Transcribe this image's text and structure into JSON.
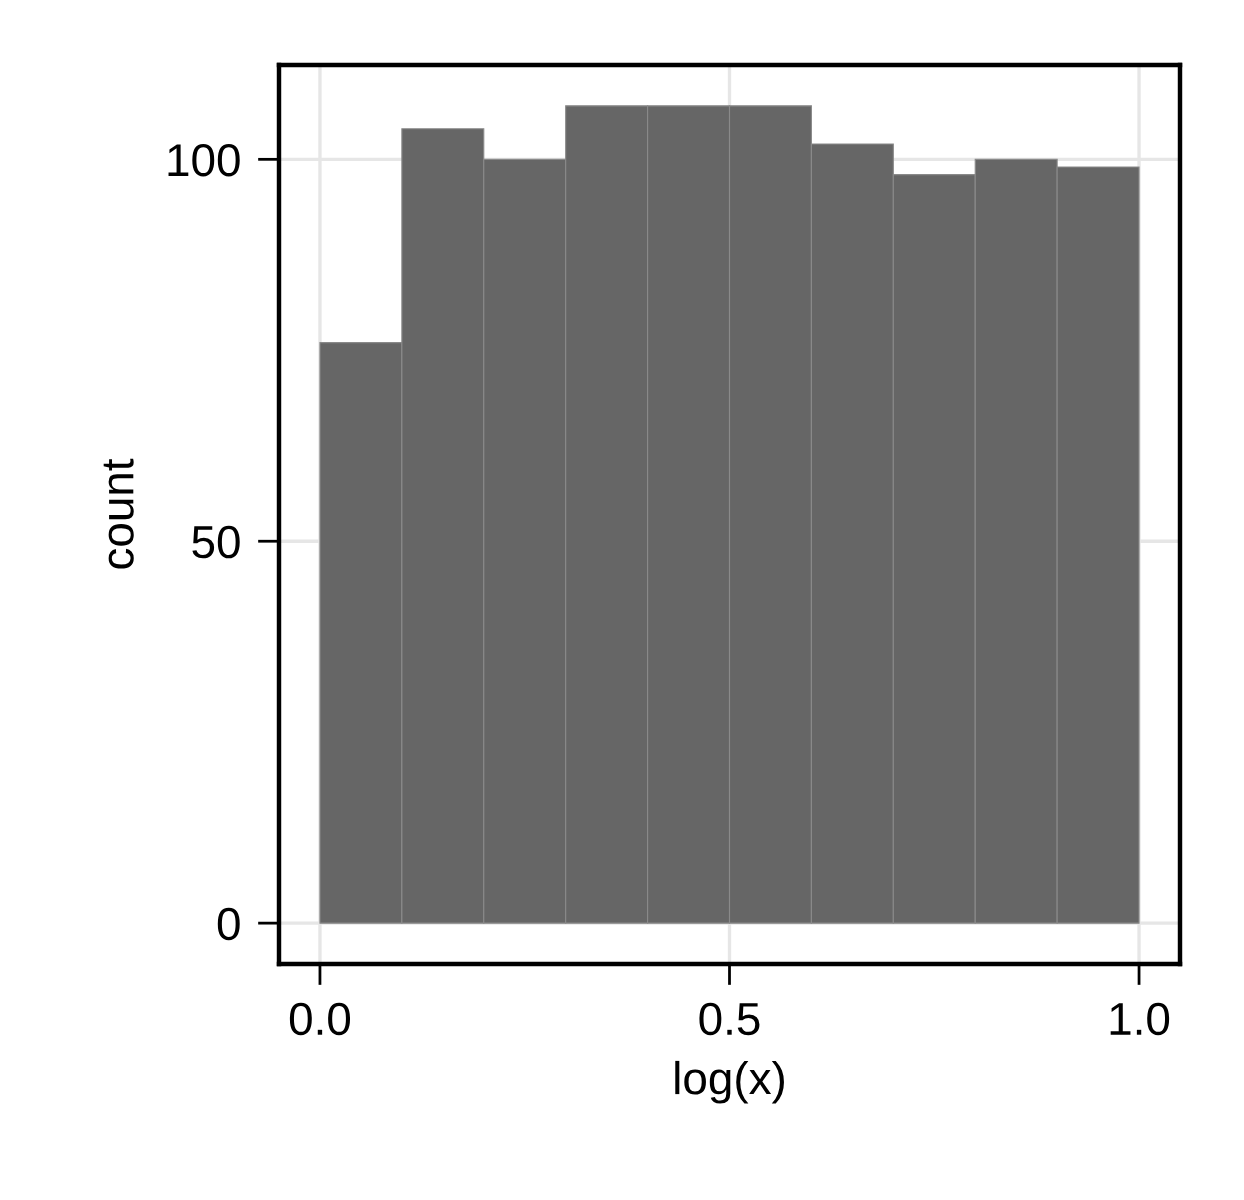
{
  "chart_data": {
    "type": "histogram",
    "xlabel": "log(x)",
    "ylabel": "count",
    "bins": [
      0,
      0.1,
      0.2,
      0.3,
      0.4,
      0.5,
      0.6,
      0.7,
      0.8,
      0.9,
      1.0
    ],
    "values": [
      76,
      104,
      100,
      107,
      107,
      107,
      102,
      98,
      100,
      99
    ],
    "color": "#666666",
    "xlim": [
      -0.05,
      1.05
    ],
    "ylim": [
      -5.35,
      112.35
    ],
    "xticks": [
      {
        "value": 0,
        "label": "0.0"
      },
      {
        "value": 0.5,
        "label": "0.5"
      },
      {
        "value": 1,
        "label": "1.0"
      }
    ],
    "yticks": [
      0,
      50,
      100
    ],
    "grid": true
  }
}
